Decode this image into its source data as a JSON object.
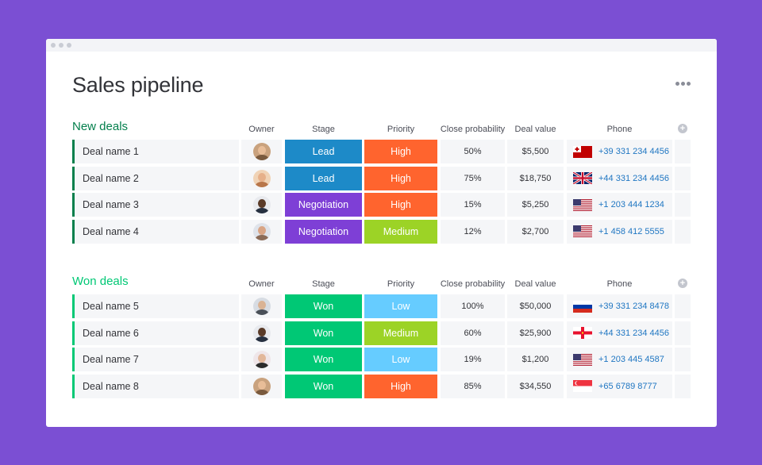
{
  "page": {
    "title": "Sales pipeline"
  },
  "columns": {
    "owner": "Owner",
    "stage": "Stage",
    "priority": "Priority",
    "close_probability": "Close probability",
    "deal_value": "Deal value",
    "phone": "Phone"
  },
  "colors": {
    "background": "#7b4fd3",
    "lead": "#1d8ac8",
    "negotiation": "#7e3fd6",
    "won": "#00c875",
    "high": "#ff642e",
    "medium": "#9cd326",
    "low": "#66ccff",
    "new_deals_group": "#037f4c",
    "won_deals_group": "#00c875"
  },
  "groups": [
    {
      "title": "New deals",
      "color": "#037f4c",
      "rows": [
        {
          "name": "Deal name 1",
          "owner_icon": "avatar-woman-curly-hair-icon",
          "stage": "Lead",
          "stage_color": "#1d8ac8",
          "priority": "High",
          "priority_color": "#ff642e",
          "probability": "50%",
          "value": "$5,500",
          "phone": "+39 331 234 4456",
          "flag_icon": "tonga-flag-icon"
        },
        {
          "name": "Deal name 2",
          "owner_icon": "avatar-woman-long-hair-icon",
          "stage": "Lead",
          "stage_color": "#1d8ac8",
          "priority": "High",
          "priority_color": "#ff642e",
          "probability": "75%",
          "value": "$18,750",
          "phone": "+44 331 234 4456",
          "flag_icon": "uk-flag-icon"
        },
        {
          "name": "Deal name 3",
          "owner_icon": "avatar-man-dark-icon",
          "stage": "Negotiation",
          "stage_color": "#7e3fd6",
          "priority": "High",
          "priority_color": "#ff642e",
          "probability": "15%",
          "value": "$5,250",
          "phone": "+1 203 444 1234",
          "flag_icon": "us-flag-icon"
        },
        {
          "name": "Deal name 4",
          "owner_icon": "avatar-man-beard-icon",
          "stage": "Negotiation",
          "stage_color": "#7e3fd6",
          "priority": "Medium",
          "priority_color": "#9cd326",
          "probability": "12%",
          "value": "$2,700",
          "phone": "+1 458 412 5555",
          "flag_icon": "us-flag-icon"
        }
      ]
    },
    {
      "title": "Won deals",
      "color": "#00c875",
      "rows": [
        {
          "name": "Deal name 5",
          "owner_icon": "avatar-man-glasses-icon",
          "stage": "Won",
          "stage_color": "#00c875",
          "priority": "Low",
          "priority_color": "#66ccff",
          "probability": "100%",
          "value": "$50,000",
          "phone": "+39 331 234 8478",
          "flag_icon": "russia-flag-icon"
        },
        {
          "name": "Deal name 6",
          "owner_icon": "avatar-man-dark-icon",
          "stage": "Won",
          "stage_color": "#00c875",
          "priority": "Medium",
          "priority_color": "#9cd326",
          "probability": "60%",
          "value": "$25,900",
          "phone": "+44 331 234 4456",
          "flag_icon": "guernsey-flag-icon"
        },
        {
          "name": "Deal name 7",
          "owner_icon": "avatar-woman-dark-hair-icon",
          "stage": "Won",
          "stage_color": "#00c875",
          "priority": "Low",
          "priority_color": "#66ccff",
          "probability": "19%",
          "value": "$1,200",
          "phone": "+1 203 445 4587",
          "flag_icon": "us-flag-icon"
        },
        {
          "name": "Deal name 8",
          "owner_icon": "avatar-woman-curly-hair-icon",
          "stage": "Won",
          "stage_color": "#00c875",
          "priority": "High",
          "priority_color": "#ff642e",
          "probability": "85%",
          "value": "$34,550",
          "phone": "+65 6789 8777",
          "flag_icon": "singapore-flag-icon"
        }
      ]
    }
  ]
}
